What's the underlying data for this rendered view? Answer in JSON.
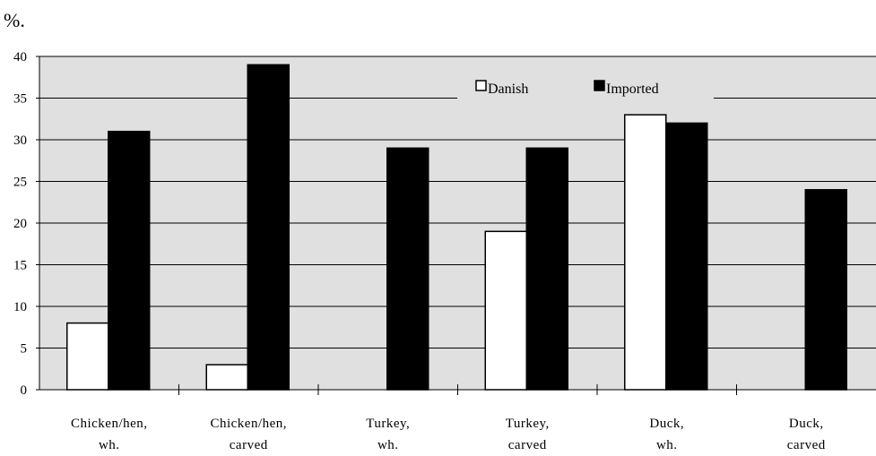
{
  "chart_data": {
    "type": "bar",
    "title": "",
    "ylabel": "%.",
    "xlabel": "",
    "ylim": [
      0,
      40
    ],
    "yticks": [
      "0",
      "5",
      "10",
      "15",
      "20",
      "25",
      "30",
      "35",
      "40"
    ],
    "grid": true,
    "legend_position": "top-right",
    "categories": [
      [
        "Chicken/hen,",
        "wh."
      ],
      [
        "Chicken/hen,",
        "carved"
      ],
      [
        "Turkey,",
        "wh."
      ],
      [
        "Turkey,",
        "carved"
      ],
      [
        "Duck,",
        "wh."
      ],
      [
        "Duck,",
        "carved"
      ]
    ],
    "series": [
      {
        "name": "Danish",
        "color": "#ffffff",
        "values": [
          8,
          3,
          0,
          19,
          33,
          0
        ]
      },
      {
        "name": "Imported",
        "color": "#000000",
        "values": [
          31,
          39,
          29,
          29,
          32,
          24
        ]
      }
    ],
    "plot_background": "#e0e0e0"
  }
}
